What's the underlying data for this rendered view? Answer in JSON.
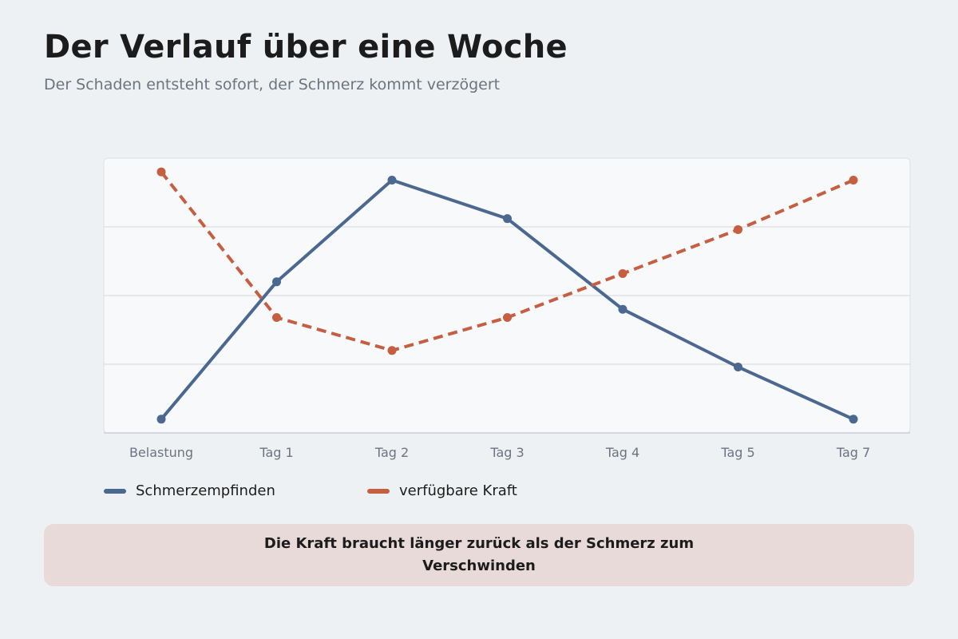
{
  "header": {
    "title": "Der Verlauf über eine Woche",
    "subtitle": "Der Schaden entsteht sofort, der Schmerz kommt verzögert"
  },
  "chart_data": {
    "type": "line",
    "categories": [
      "Belastung",
      "Tag 1",
      "Tag 2",
      "Tag 3",
      "Tag 4",
      "Tag 5",
      "Tag 7"
    ],
    "ylim": [
      0,
      100
    ],
    "grid": true,
    "legend_position": "bottom-left",
    "series": [
      {
        "name": "Schmerzempfinden",
        "values": [
          5,
          55,
          92,
          78,
          45,
          24,
          5
        ],
        "color": "#4a6890",
        "dashed": false
      },
      {
        "name": "verfügbare Kraft",
        "values": [
          95,
          42,
          30,
          42,
          58,
          74,
          92
        ],
        "color": "#c65f42",
        "dashed": true
      }
    ]
  },
  "note": {
    "text": "Die Kraft braucht länger zurück als der Schmerz zum Verschwinden"
  }
}
